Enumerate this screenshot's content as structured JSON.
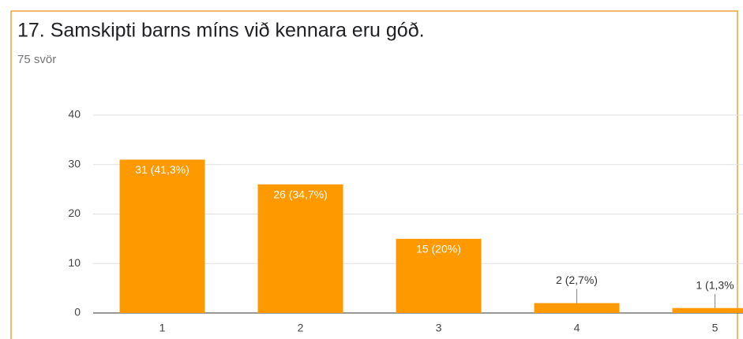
{
  "chart_data": {
    "type": "bar",
    "title": "17. Samskipti barns míns við kennara eru góð.",
    "subtitle": "75 svör",
    "categories": [
      "1",
      "2",
      "3",
      "4",
      "5"
    ],
    "values": [
      31,
      26,
      15,
      2,
      1
    ],
    "value_labels": [
      "31 (41,3%)",
      "26 (34,7%)",
      "15 (20%)",
      "2 (2,7%)",
      "1 (1,3%"
    ],
    "color": "#ff9900",
    "ylim": [
      0,
      40
    ],
    "yticks": [
      0,
      10,
      20,
      30,
      40
    ],
    "grid": true
  }
}
